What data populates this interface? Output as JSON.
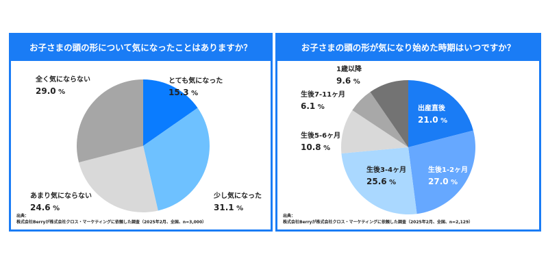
{
  "chart_data": [
    {
      "type": "pie",
      "title": "お子さまの頭の形について気になったことはありますか？",
      "categories": [
        "とても気になった",
        "少し気になった",
        "あまり気にならない",
        "全く気にならない"
      ],
      "values": [
        15.3,
        31.1,
        24.6,
        29.0
      ],
      "colors": [
        "#0a7cff",
        "#6ec1ff",
        "#d9d9d9",
        "#a6a6a6"
      ],
      "unit": "%",
      "source_label": "出典：",
      "source": "株式会社Berryが株式会社クロス・マーケティングに依頼した調査（2025年2月、全国、n=3,000）"
    },
    {
      "type": "pie",
      "title": "お子さまの頭の形が気になり始めた時期はいつですか？",
      "categories": [
        "出産直後",
        "生後1-2ヶ月",
        "生後3-4ヶ月",
        "生後5-6ヶ月",
        "生後7-11ヶ月",
        "1歳以降"
      ],
      "values": [
        21.0,
        27.0,
        25.6,
        10.8,
        6.1,
        9.6
      ],
      "colors": [
        "#1a7cf5",
        "#66a8ff",
        "#aad8ff",
        "#d9d9d9",
        "#a8a8a8",
        "#737373"
      ],
      "unit": "%",
      "source_label": "出典：",
      "source": "株式会社Berryが株式会社クロス・マーケティングに依頼した調査（2025年2月、全国、n=2,129）"
    }
  ]
}
